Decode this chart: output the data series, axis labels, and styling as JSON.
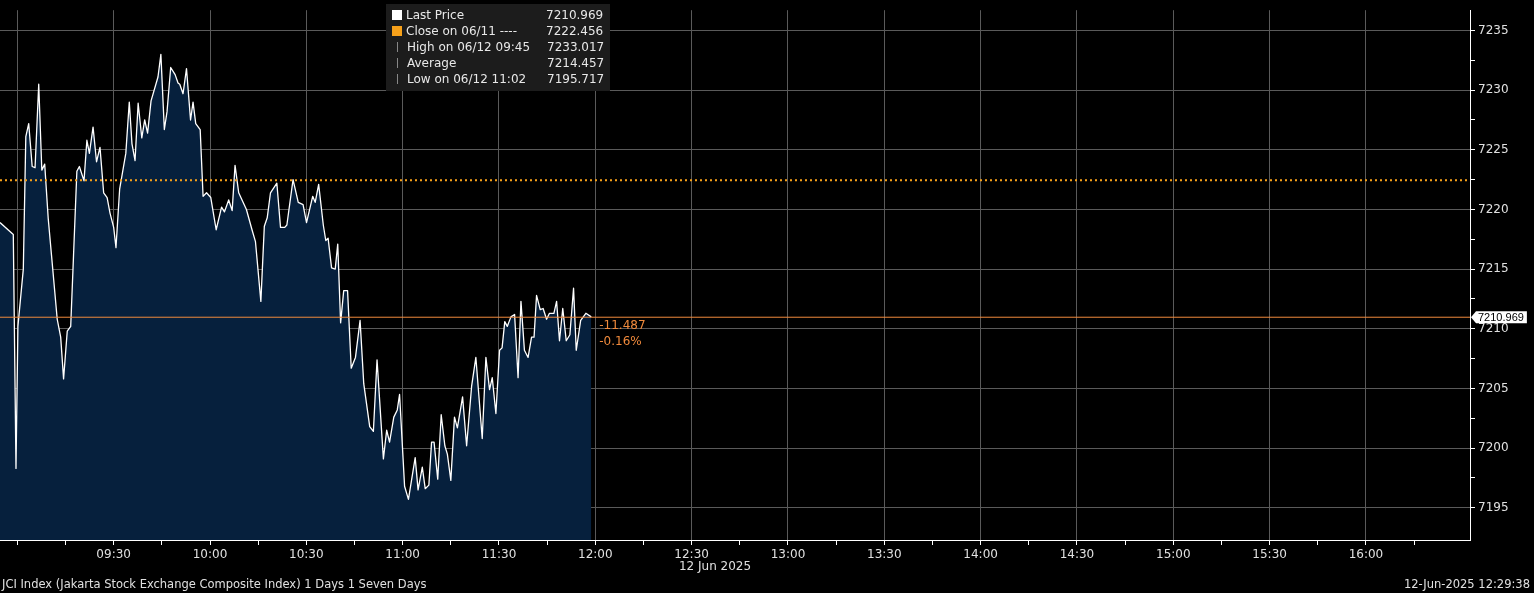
{
  "chart_data": {
    "type": "area",
    "legend": "top",
    "grid": true,
    "xlabel": "12 Jun 2025",
    "x": [
      8.91,
      8.979,
      8.993,
      9.003,
      9.031,
      9.044,
      9.059,
      9.077,
      9.092,
      9.111,
      9.127,
      9.142,
      9.16,
      9.207,
      9.225,
      9.24,
      9.259,
      9.277,
      9.309,
      9.322,
      9.346,
      9.361,
      9.374,
      9.393,
      9.411,
      9.429,
      9.448,
      9.466,
      9.481,
      9.5,
      9.512,
      9.531,
      9.563,
      9.581,
      9.595,
      9.611,
      9.627,
      9.646,
      9.661,
      9.676,
      9.694,
      9.73,
      9.745,
      9.763,
      9.777,
      9.796,
      9.819,
      9.834,
      9.843,
      9.86,
      9.878,
      9.899,
      9.912,
      9.926,
      9.949,
      9.964,
      9.982,
      10.004,
      10.032,
      10.06,
      10.075,
      10.097,
      10.115,
      10.13,
      10.149,
      10.189,
      10.218,
      10.236,
      10.264,
      10.282,
      10.297,
      10.314,
      10.347,
      10.366,
      10.388,
      10.399,
      10.431,
      10.458,
      10.483,
      10.501,
      10.533,
      10.546,
      10.564,
      10.588,
      10.601,
      10.613,
      10.631,
      10.65,
      10.663,
      10.678,
      10.694,
      10.714,
      10.733,
      10.755,
      10.779,
      10.798,
      10.829,
      10.848,
      10.867,
      10.9,
      10.917,
      10.932,
      10.954,
      10.972,
      10.984,
      11.01,
      11.03,
      11.065,
      11.08,
      11.102,
      11.117,
      11.136,
      11.15,
      11.163,
      11.182,
      11.2,
      11.219,
      11.232,
      11.25,
      11.269,
      11.284,
      11.311,
      11.332,
      11.358,
      11.38,
      11.413,
      11.432,
      11.451,
      11.465,
      11.484,
      11.503,
      11.516,
      11.53,
      11.543,
      11.562,
      11.581,
      11.599,
      11.614,
      11.632,
      11.651,
      11.669,
      11.682,
      11.695,
      11.714,
      11.729,
      11.747,
      11.762,
      11.785,
      11.799,
      11.814,
      11.831,
      11.849,
      11.868,
      11.887,
      11.901,
      11.924,
      11.951,
      11.979
    ],
    "series": [
      {
        "name": "Last Price",
        "color": "#ffffff",
        "values": [
          7218.9,
          7217.9,
          7198.3,
          7210.2,
          7215.0,
          7226.1,
          7227.2,
          7223.6,
          7223.5,
          7230.5,
          7223.3,
          7223.8,
          7219.3,
          7210.8,
          7209.3,
          7205.8,
          7209.8,
          7210.2,
          7223.2,
          7223.6,
          7222.4,
          7225.8,
          7224.7,
          7226.9,
          7224.0,
          7225.2,
          7221.4,
          7221.0,
          7219.7,
          7218.5,
          7216.8,
          7221.7,
          7224.7,
          7229.0,
          7225.5,
          7224.1,
          7228.9,
          7226.0,
          7227.5,
          7226.4,
          7229.1,
          7231.1,
          7233.0,
          7226.7,
          7228.2,
          7231.9,
          7231.3,
          7230.6,
          7230.5,
          7229.7,
          7231.8,
          7227.5,
          7229.0,
          7227.2,
          7226.7,
          7221.1,
          7221.4,
          7221.0,
          7218.3,
          7220.2,
          7219.8,
          7220.8,
          7219.9,
          7223.7,
          7221.4,
          7220.0,
          7218.3,
          7217.3,
          7212.3,
          7218.6,
          7219.3,
          7221.4,
          7222.2,
          7218.5,
          7218.5,
          7218.7,
          7222.5,
          7220.6,
          7220.4,
          7218.9,
          7221.1,
          7220.6,
          7222.1,
          7218.7,
          7217.4,
          7217.6,
          7215.1,
          7215.0,
          7217.1,
          7210.5,
          7213.2,
          7213.2,
          7206.7,
          7207.6,
          7210.7,
          7205.4,
          7201.8,
          7201.4,
          7207.4,
          7199.1,
          7201.5,
          7200.5,
          7202.6,
          7203.2,
          7204.5,
          7196.8,
          7195.7,
          7199.2,
          7196.5,
          7198.4,
          7196.6,
          7196.9,
          7200.5,
          7200.5,
          7197.4,
          7202.8,
          7200.2,
          7199.5,
          7197.3,
          7202.6,
          7201.7,
          7204.3,
          7200.2,
          7205.2,
          7207.6,
          7200.8,
          7207.6,
          7204.9,
          7205.9,
          7202.9,
          7208.2,
          7208.4,
          7210.6,
          7210.2,
          7211.0,
          7211.2,
          7205.9,
          7212.3,
          7208.2,
          7207.6,
          7209.3,
          7209.3,
          7212.8,
          7211.6,
          7211.7,
          7210.8,
          7211.3,
          7211.3,
          7212.3,
          7209.0,
          7211.7,
          7209.0,
          7209.5,
          7213.4,
          7208.2,
          7210.7,
          7211.3,
          7211.0
        ]
      }
    ],
    "xlim": [
      8.91,
      16.54
    ],
    "xticks": [
      {
        "value": 9,
        "label": null
      },
      {
        "value": 9.25,
        "label": null
      },
      {
        "value": 9.5,
        "label": "09:30"
      },
      {
        "value": 9.75,
        "label": null
      },
      {
        "value": 10,
        "label": "10:00"
      },
      {
        "value": 10.25,
        "label": null
      },
      {
        "value": 10.5,
        "label": "10:30"
      },
      {
        "value": 10.75,
        "label": null
      },
      {
        "value": 11,
        "label": "11:00"
      },
      {
        "value": 11.25,
        "label": null
      },
      {
        "value": 11.5,
        "label": "11:30"
      },
      {
        "value": 11.75,
        "label": null
      },
      {
        "value": 12,
        "label": "12:00"
      },
      {
        "value": 12.25,
        "label": null
      },
      {
        "value": 12.5,
        "label": "12:30"
      },
      {
        "value": 12.75,
        "label": null
      },
      {
        "value": 13,
        "label": "13:00"
      },
      {
        "value": 13.25,
        "label": null
      },
      {
        "value": 13.5,
        "label": "13:30"
      },
      {
        "value": 13.75,
        "label": null
      },
      {
        "value": 14,
        "label": "14:00"
      },
      {
        "value": 14.25,
        "label": null
      },
      {
        "value": 14.5,
        "label": "14:30"
      },
      {
        "value": 14.75,
        "label": null
      },
      {
        "value": 15,
        "label": "15:00"
      },
      {
        "value": 15.25,
        "label": null
      },
      {
        "value": 15.5,
        "label": "15:30"
      },
      {
        "value": 15.75,
        "label": null
      },
      {
        "value": 16,
        "label": "16:00"
      },
      {
        "value": 16.25,
        "label": null
      }
    ],
    "ylim": [
      7192.3,
      7236.7
    ],
    "yticks": [
      7195,
      {
        "value": 7197.5,
        "label": null
      },
      7200,
      {
        "value": 7202.5,
        "label": null
      },
      7205,
      {
        "value": 7207.5,
        "label": null
      },
      7210,
      {
        "value": 7212.5,
        "label": null
      },
      7215,
      {
        "value": 7217.5,
        "label": null
      },
      7220,
      {
        "value": 7222.5,
        "label": null
      },
      7225,
      {
        "value": 7227.5,
        "label": null
      },
      7230,
      {
        "value": 7232.5,
        "label": null
      },
      7235
    ],
    "ref_lines": [
      {
        "axis": "y",
        "value": 7222.456,
        "label": "Close on 06/11 ---- 7222.456",
        "color": "#f7a11a",
        "line_style": "dotted"
      },
      {
        "axis": "y",
        "value": 7210.969,
        "label": "7210.969",
        "color": "#f08a3c",
        "line_style": "solid"
      }
    ],
    "annotations": [
      "High on 06/12 09:45 7233.017",
      "Average 7214.457",
      "Low on 06/12 11:02 7195.717",
      "JCI Index (Jakarta Stock Exchange Composite Index) 1 Days 1 Seven Days",
      "12-Jun-2025 12:29:38",
      {
        "text": "-11.487",
        "x": 11.979,
        "y": 7210.969
      },
      {
        "text": "-0.16%",
        "x": 11.979,
        "y": 7210.969
      }
    ]
  }
}
